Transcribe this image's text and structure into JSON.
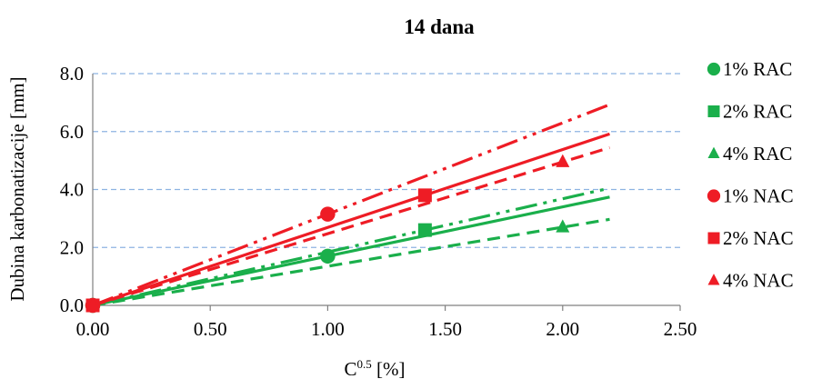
{
  "chart_data": {
    "type": "scatter",
    "title": "14 dana",
    "xlabel_base": "C",
    "xlabel_sup": "0.5",
    "xlabel_unit": " [%]",
    "ylabel": "Dubina karbonatizacije [mm]",
    "xlim": [
      0,
      2.5
    ],
    "ylim": [
      0,
      8
    ],
    "x_ticks": [
      "0.00",
      "0.50",
      "1.00",
      "1.50",
      "2.00",
      "2.50"
    ],
    "y_ticks": [
      "0.0",
      "2.0",
      "4.0",
      "6.0",
      "8.0"
    ],
    "grid": "horizontal dashed",
    "legend_position": "right",
    "series": [
      {
        "name": "1% RAC",
        "marker": "circle",
        "color": "#1aaf4b",
        "x": [
          0,
          1.0
        ],
        "y": [
          0,
          1.7
        ],
        "trend_slope": 1.7,
        "trend_style": "solid"
      },
      {
        "name": "2% RAC",
        "marker": "square",
        "color": "#1aaf4b",
        "x": [
          0,
          1.414
        ],
        "y": [
          0,
          2.6
        ],
        "trend_slope": 1.84,
        "trend_style": "dashdotdot"
      },
      {
        "name": "4% RAC",
        "marker": "triangle",
        "color": "#1aaf4b",
        "x": [
          0,
          2.0
        ],
        "y": [
          0,
          2.7
        ],
        "trend_slope": 1.35,
        "trend_style": "dashed"
      },
      {
        "name": "1% NAC",
        "marker": "circle",
        "color": "#ee1c25",
        "x": [
          0,
          1.0
        ],
        "y": [
          0,
          3.15
        ],
        "trend_slope": 3.15,
        "trend_style": "dashdotdot"
      },
      {
        "name": "2% NAC",
        "marker": "square",
        "color": "#ee1c25",
        "x": [
          0,
          1.414
        ],
        "y": [
          0,
          3.8
        ],
        "trend_slope": 2.69,
        "trend_style": "solid"
      },
      {
        "name": "4% NAC",
        "marker": "triangle",
        "color": "#ee1c25",
        "x": [
          0,
          2.0
        ],
        "y": [
          0,
          4.95
        ],
        "trend_slope": 2.475,
        "trend_style": "dashed"
      }
    ]
  }
}
